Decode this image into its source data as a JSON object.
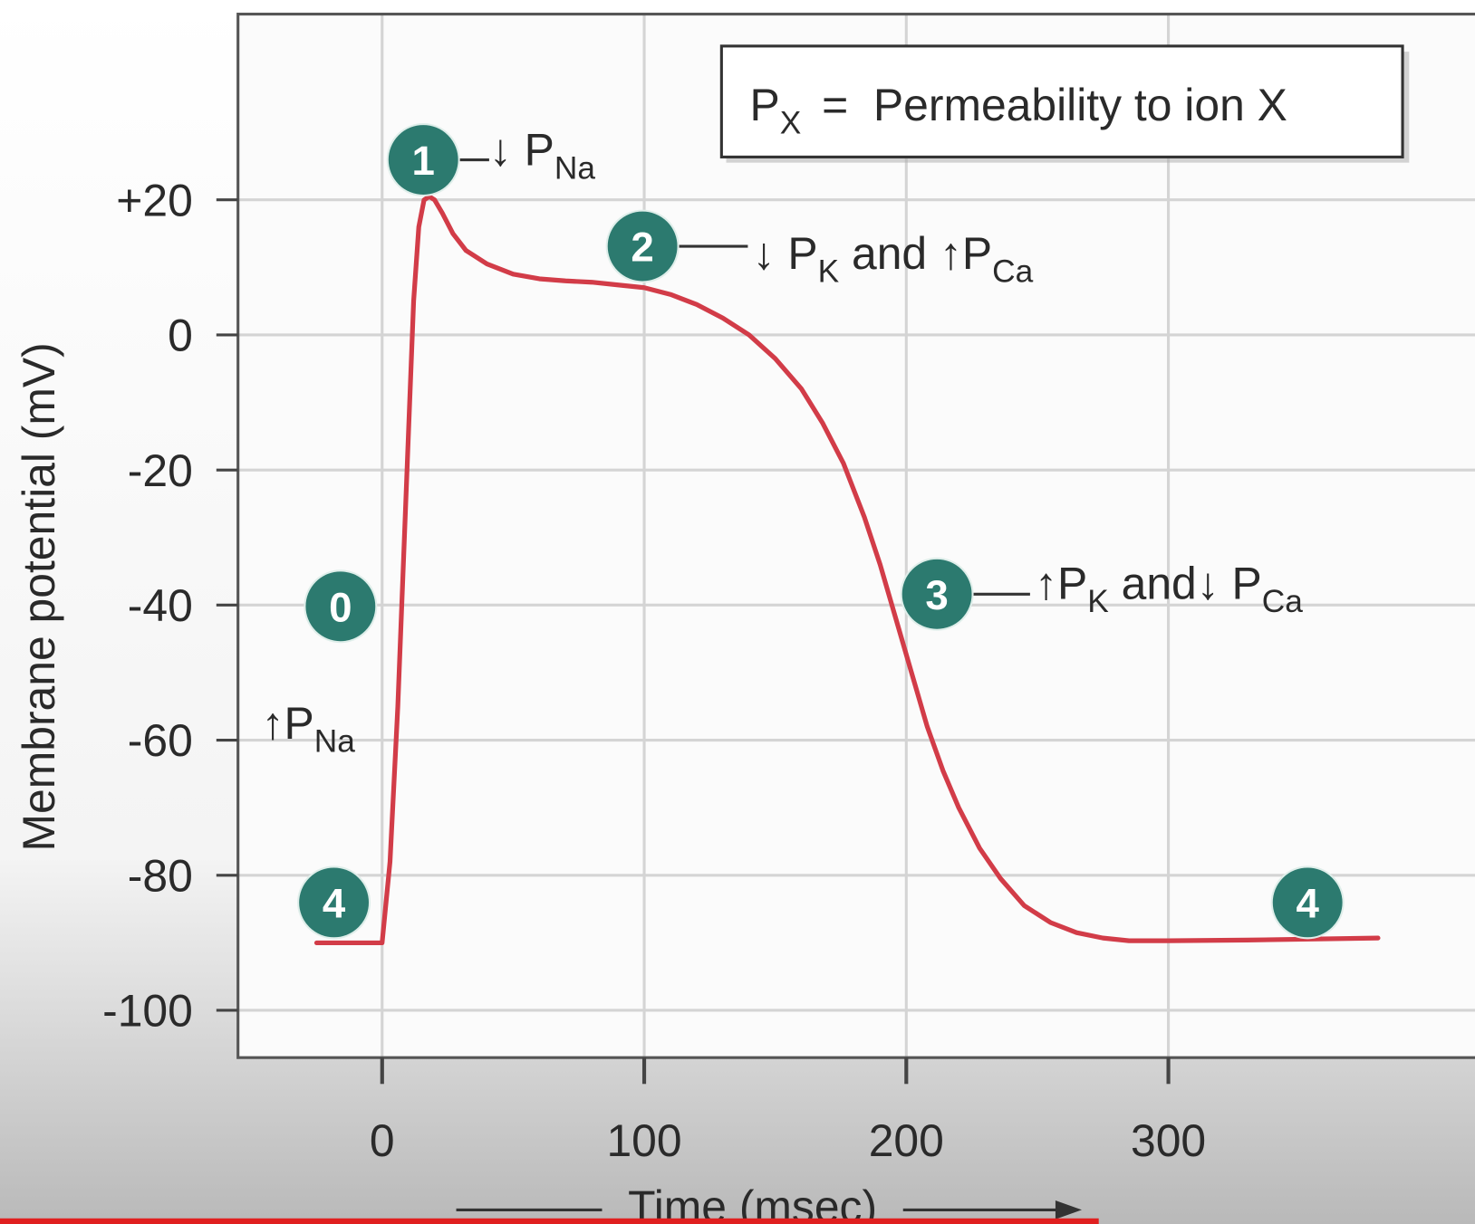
{
  "chart_data": {
    "type": "line",
    "x_label": "Time (msec)",
    "y_label": "Membrane potential (mV)",
    "x": [
      -25,
      0,
      3,
      6,
      9,
      12,
      14,
      16,
      18,
      20,
      23,
      27,
      32,
      40,
      50,
      60,
      70,
      80,
      90,
      100,
      110,
      120,
      130,
      140,
      150,
      160,
      168,
      176,
      184,
      190,
      196,
      202,
      208,
      214,
      220,
      228,
      236,
      245,
      255,
      265,
      275,
      285,
      300,
      330,
      380
    ],
    "values": [
      -90,
      -90,
      -78,
      -55,
      -25,
      5,
      16,
      20,
      20.5,
      20,
      18,
      15,
      12.5,
      10.5,
      9,
      8.3,
      8,
      7.8,
      7.4,
      7,
      6,
      4.5,
      2.5,
      0,
      -3.5,
      -8,
      -13,
      -19,
      -27,
      -34,
      -42,
      -50,
      -58,
      -64.5,
      -70,
      -76,
      -80.5,
      -84.5,
      -87,
      -88.5,
      -89.3,
      -89.7,
      -89.7,
      -89.6,
      -89.3
    ],
    "color": "#d23c48",
    "xlim": [
      -55,
      417
    ],
    "ylim": [
      -107,
      47.5
    ],
    "xticks": [
      0,
      100,
      200,
      300
    ],
    "yticks": [
      {
        "value": 20,
        "label": "+20"
      },
      0,
      -20,
      -40,
      -60,
      -80,
      -100
    ],
    "grid": true,
    "legend": {
      "symbol": "P",
      "subscript": "X",
      "definition": "=  Permeability to ion X"
    },
    "annotations": [
      {
        "marker": "1",
        "label": [
          {
            "text": "↓ P",
            "sub": "Na"
          }
        ]
      },
      {
        "marker": "2",
        "label": [
          {
            "text": "↓ P",
            "sub": "K"
          },
          {
            "text": " and ↑P",
            "sub": "Ca"
          }
        ]
      },
      {
        "marker": "3",
        "label": [
          {
            "text": "↑P",
            "sub": "K"
          },
          {
            "text": " and↓ P",
            "sub": "Ca"
          }
        ]
      },
      {
        "marker": "0",
        "label": [
          {
            "text": "↑P",
            "sub": "Na"
          }
        ]
      },
      {
        "marker": "4"
      },
      {
        "marker": "4"
      }
    ]
  }
}
